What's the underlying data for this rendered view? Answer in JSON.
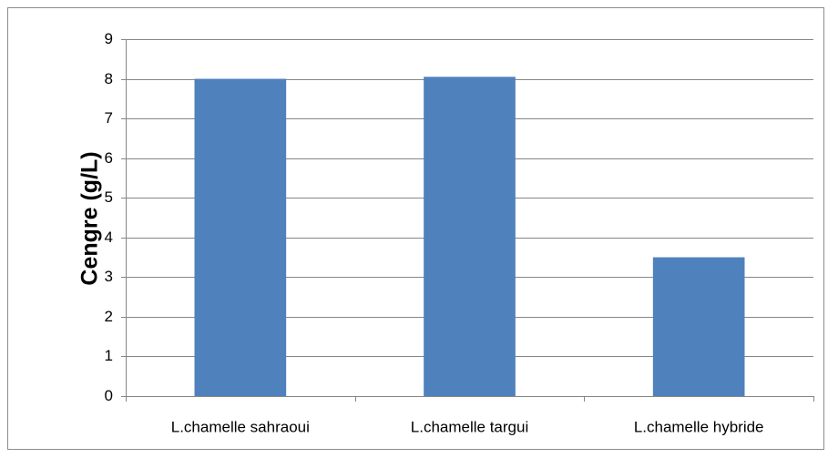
{
  "chart_data": {
    "type": "bar",
    "y_label": "Cengre (g/L)",
    "categories": [
      "L.chamelle sahraoui",
      "L.chamelle targui",
      "L.chamelle hybride"
    ],
    "values": [
      8.0,
      8.05,
      3.5
    ],
    "color": "#4f81bd",
    "ylim": [
      0,
      9
    ],
    "yticks": [
      0,
      1,
      2,
      3,
      4,
      5,
      6,
      7,
      8,
      9
    ],
    "grid": true
  }
}
